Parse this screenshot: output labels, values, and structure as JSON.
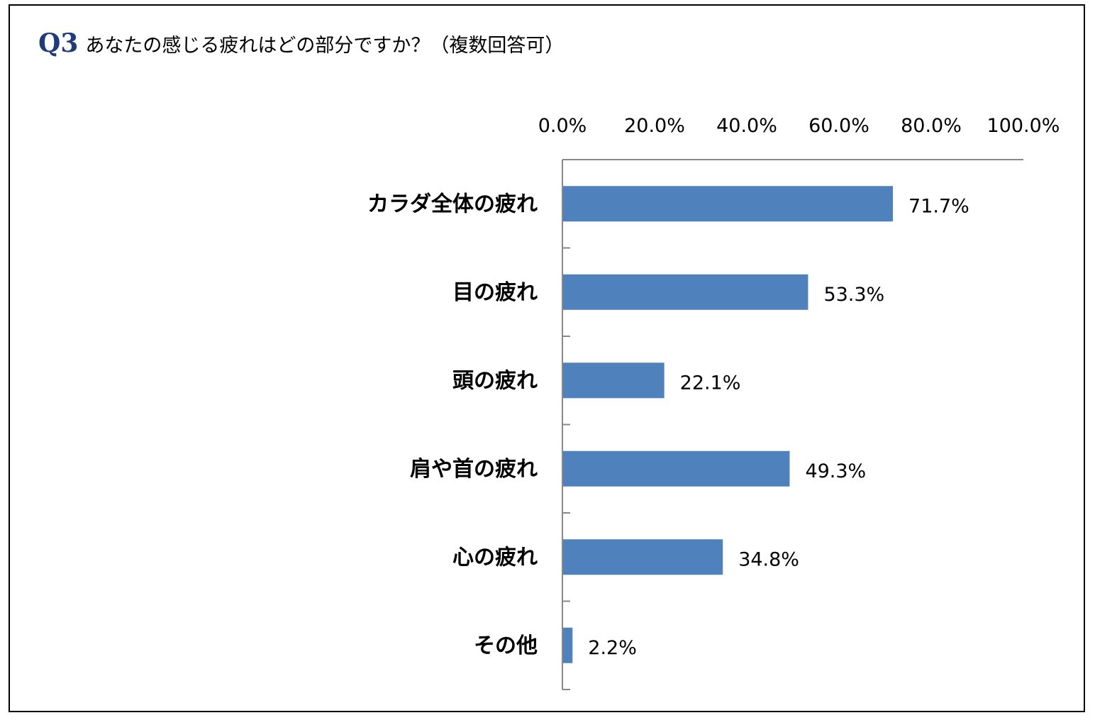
{
  "question": {
    "label": "Q3",
    "text": "あなたの感じる疲れはどの部分ですか？（複数回答可）"
  },
  "colors": {
    "bar": "#4f81bd",
    "axis": "#888888",
    "question_label": "#1f3c7a"
  },
  "chart_data": {
    "type": "bar",
    "orientation": "horizontal",
    "categories": [
      "カラダ全体の疲れ",
      "目の疲れ",
      "頭の疲れ",
      "肩や首の疲れ",
      "心の疲れ",
      "その他"
    ],
    "values": [
      71.7,
      53.3,
      22.1,
      49.3,
      34.8,
      2.2
    ],
    "value_labels": [
      "71.7%",
      "53.3%",
      "22.1%",
      "49.3%",
      "34.8%",
      "2.2%"
    ],
    "xlim": [
      0,
      100
    ],
    "ticks": [
      0,
      20,
      40,
      60,
      80,
      100
    ],
    "tick_labels": [
      "0.0%",
      "20.0%",
      "40.0%",
      "60.0%",
      "80.0%",
      "100.0%"
    ],
    "axis_position": "top",
    "grid": false,
    "legend": "none"
  }
}
